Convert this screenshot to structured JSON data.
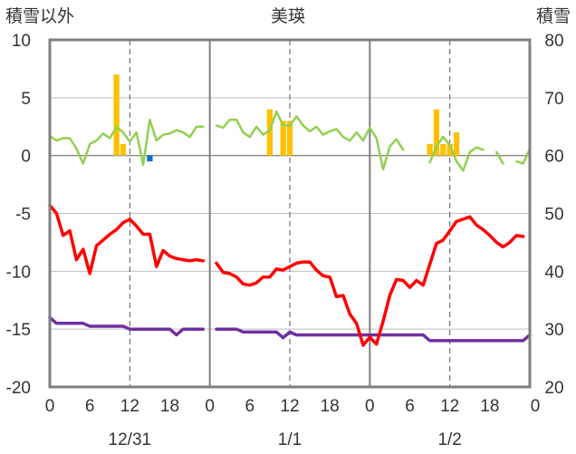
{
  "chart_data": {
    "type": "line",
    "title": "美瑛",
    "left_axis": {
      "label": "積雪以外",
      "ylim": [
        -20,
        10
      ],
      "ticks": [
        10,
        5,
        0,
        -5,
        -10,
        -15,
        -20
      ]
    },
    "right_axis": {
      "label": "積雪",
      "ylim": [
        20,
        80
      ],
      "ticks": [
        80,
        70,
        60,
        50,
        40,
        30,
        20
      ]
    },
    "x_axis": {
      "range_hours": [
        0,
        72
      ],
      "ticks": [
        {
          "h": 0,
          "label": "0"
        },
        {
          "h": 6,
          "label": "6"
        },
        {
          "h": 12,
          "label": "12"
        },
        {
          "h": 18,
          "label": "18"
        },
        {
          "h": 24,
          "label": "0"
        },
        {
          "h": 30,
          "label": "6"
        },
        {
          "h": 36,
          "label": "12"
        },
        {
          "h": 42,
          "label": "18"
        },
        {
          "h": 48,
          "label": "0"
        },
        {
          "h": 54,
          "label": "6"
        },
        {
          "h": 60,
          "label": "12"
        },
        {
          "h": 66,
          "label": "18"
        },
        {
          "h": 72,
          "label": "0"
        }
      ],
      "dates": [
        {
          "h": 12,
          "label": "12/31"
        },
        {
          "h": 36,
          "label": "1/1"
        },
        {
          "h": 60,
          "label": "1/2"
        }
      ],
      "day_separators": [
        24,
        48
      ],
      "noon_lines": [
        12,
        36,
        60
      ]
    },
    "colors": {
      "temperature": "#ff0000",
      "wind": "#92d050",
      "snow_depth": "#7030a0",
      "precipitation": "#ffc000",
      "snowfall_change": "#0070c0"
    },
    "precipitation_bars": [
      {
        "h": 10,
        "v": 7.0
      },
      {
        "h": 11,
        "v": 1.0
      },
      {
        "h": 33,
        "v": 4.0
      },
      {
        "h": 35,
        "v": 3.0
      },
      {
        "h": 36,
        "v": 3.0
      },
      {
        "h": 57,
        "v": 1.0
      },
      {
        "h": 58,
        "v": 4.0
      },
      {
        "h": 59,
        "v": 1.0
      },
      {
        "h": 60,
        "v": 1.0
      },
      {
        "h": 61,
        "v": 2.0
      }
    ],
    "snowfall_change_bars": [
      {
        "h": 15,
        "v": -0.5
      }
    ],
    "wind": [
      [
        {
          "h": 0,
          "v": 1.7
        },
        {
          "h": 1,
          "v": 1.3
        },
        {
          "h": 2,
          "v": 1.5
        },
        {
          "h": 3,
          "v": 1.5
        },
        {
          "h": 4,
          "v": 0.6
        },
        {
          "h": 5,
          "v": -0.7
        },
        {
          "h": 6,
          "v": 1.0
        },
        {
          "h": 7,
          "v": 1.3
        },
        {
          "h": 8,
          "v": 1.9
        },
        {
          "h": 9,
          "v": 1.5
        },
        {
          "h": 10,
          "v": 2.5
        },
        {
          "h": 11,
          "v": 2.0
        },
        {
          "h": 12,
          "v": 1.2
        },
        {
          "h": 13,
          "v": 2.0
        },
        {
          "h": 14,
          "v": -0.8
        },
        {
          "h": 15,
          "v": 3.1
        },
        {
          "h": 16,
          "v": 1.3
        },
        {
          "h": 17,
          "v": 1.8
        },
        {
          "h": 18,
          "v": 1.9
        },
        {
          "h": 19,
          "v": 2.2
        },
        {
          "h": 20,
          "v": 2.0
        },
        {
          "h": 21,
          "v": 1.6
        },
        {
          "h": 22,
          "v": 2.5
        },
        {
          "h": 23,
          "v": 2.5
        }
      ],
      [
        {
          "h": 25,
          "v": 2.6
        },
        {
          "h": 26,
          "v": 2.4
        },
        {
          "h": 27,
          "v": 3.1
        },
        {
          "h": 28,
          "v": 3.1
        },
        {
          "h": 29,
          "v": 2.0
        },
        {
          "h": 30,
          "v": 1.6
        },
        {
          "h": 31,
          "v": 2.5
        },
        {
          "h": 32,
          "v": 1.8
        },
        {
          "h": 33,
          "v": 2.2
        },
        {
          "h": 34,
          "v": 3.8
        },
        {
          "h": 35,
          "v": 2.6
        },
        {
          "h": 36,
          "v": 2.6
        },
        {
          "h": 37,
          "v": 3.4
        },
        {
          "h": 38,
          "v": 2.6
        },
        {
          "h": 39,
          "v": 2.1
        },
        {
          "h": 40,
          "v": 2.5
        },
        {
          "h": 41,
          "v": 1.8
        },
        {
          "h": 42,
          "v": 2.1
        },
        {
          "h": 43,
          "v": 2.3
        },
        {
          "h": 44,
          "v": 1.6
        },
        {
          "h": 45,
          "v": 1.3
        },
        {
          "h": 46,
          "v": 2.0
        },
        {
          "h": 47,
          "v": 1.3
        },
        {
          "h": 48,
          "v": 2.4
        },
        {
          "h": 49,
          "v": 1.5
        },
        {
          "h": 50,
          "v": -1.2
        },
        {
          "h": 51,
          "v": 0.8
        },
        {
          "h": 52,
          "v": 1.4
        },
        {
          "h": 53,
          "v": 0.5
        }
      ],
      [
        {
          "h": 57,
          "v": -0.6
        },
        {
          "h": 58,
          "v": 0.8
        },
        {
          "h": 59,
          "v": 1.6
        },
        {
          "h": 60,
          "v": 0.9
        },
        {
          "h": 61,
          "v": -0.5
        },
        {
          "h": 62,
          "v": -1.3
        },
        {
          "h": 63,
          "v": 0.3
        },
        {
          "h": 64,
          "v": 0.7
        },
        {
          "h": 65,
          "v": 0.5
        }
      ],
      [
        {
          "h": 67,
          "v": 0.3
        },
        {
          "h": 68,
          "v": -0.7
        }
      ],
      [
        {
          "h": 70,
          "v": -0.5
        },
        {
          "h": 71,
          "v": -0.7
        },
        {
          "h": 72,
          "v": 0.6
        }
      ]
    ],
    "temperature": [
      [
        {
          "h": 0,
          "v": -4.3
        },
        {
          "h": 1,
          "v": -5.0
        },
        {
          "h": 2,
          "v": -6.9
        },
        {
          "h": 3,
          "v": -6.5
        },
        {
          "h": 4,
          "v": -9.0
        },
        {
          "h": 5,
          "v": -8.1
        },
        {
          "h": 6,
          "v": -10.2
        },
        {
          "h": 7,
          "v": -7.8
        },
        {
          "h": 8,
          "v": -7.3
        },
        {
          "h": 9,
          "v": -6.8
        },
        {
          "h": 10,
          "v": -6.4
        },
        {
          "h": 11,
          "v": -5.8
        },
        {
          "h": 12,
          "v": -5.5
        },
        {
          "h": 13,
          "v": -6.1
        },
        {
          "h": 14,
          "v": -6.8
        },
        {
          "h": 15,
          "v": -6.8
        },
        {
          "h": 16,
          "v": -9.6
        },
        {
          "h": 17,
          "v": -8.2
        },
        {
          "h": 18,
          "v": -8.7
        },
        {
          "h": 19,
          "v": -8.9
        },
        {
          "h": 20,
          "v": -9.0
        },
        {
          "h": 21,
          "v": -9.1
        },
        {
          "h": 22,
          "v": -9.0
        },
        {
          "h": 23,
          "v": -9.1
        }
      ],
      [
        {
          "h": 25,
          "v": -9.3
        },
        {
          "h": 26,
          "v": -10.1
        },
        {
          "h": 27,
          "v": -10.2
        },
        {
          "h": 28,
          "v": -10.5
        },
        {
          "h": 29,
          "v": -11.1
        },
        {
          "h": 30,
          "v": -11.2
        },
        {
          "h": 31,
          "v": -11.0
        },
        {
          "h": 32,
          "v": -10.5
        },
        {
          "h": 33,
          "v": -10.5
        },
        {
          "h": 34,
          "v": -9.8
        },
        {
          "h": 35,
          "v": -9.9
        },
        {
          "h": 36,
          "v": -9.6
        },
        {
          "h": 37,
          "v": -9.3
        },
        {
          "h": 38,
          "v": -9.2
        },
        {
          "h": 39,
          "v": -9.2
        },
        {
          "h": 40,
          "v": -9.9
        },
        {
          "h": 41,
          "v": -10.4
        },
        {
          "h": 42,
          "v": -10.5
        },
        {
          "h": 43,
          "v": -12.2
        },
        {
          "h": 44,
          "v": -12.1
        },
        {
          "h": 45,
          "v": -13.7
        },
        {
          "h": 46,
          "v": -14.5
        },
        {
          "h": 47,
          "v": -16.4
        },
        {
          "h": 48,
          "v": -15.7
        },
        {
          "h": 49,
          "v": -16.3
        },
        {
          "h": 50,
          "v": -14.3
        },
        {
          "h": 51,
          "v": -12.1
        },
        {
          "h": 52,
          "v": -10.7
        },
        {
          "h": 53,
          "v": -10.8
        },
        {
          "h": 54,
          "v": -11.4
        },
        {
          "h": 55,
          "v": -10.8
        },
        {
          "h": 56,
          "v": -11.2
        },
        {
          "h": 57,
          "v": -9.4
        },
        {
          "h": 58,
          "v": -7.6
        },
        {
          "h": 59,
          "v": -7.3
        },
        {
          "h": 60,
          "v": -6.5
        },
        {
          "h": 61,
          "v": -5.7
        },
        {
          "h": 62,
          "v": -5.5
        },
        {
          "h": 63,
          "v": -5.3
        },
        {
          "h": 64,
          "v": -6.0
        },
        {
          "h": 65,
          "v": -6.4
        },
        {
          "h": 66,
          "v": -6.9
        },
        {
          "h": 67,
          "v": -7.5
        },
        {
          "h": 68,
          "v": -7.9
        },
        {
          "h": 69,
          "v": -7.5
        },
        {
          "h": 70,
          "v": -6.9
        },
        {
          "h": 71,
          "v": -7.0
        }
      ]
    ],
    "snow_depth": [
      [
        {
          "h": 0,
          "v": 32
        },
        {
          "h": 1,
          "v": 31
        },
        {
          "h": 2,
          "v": 31
        },
        {
          "h": 3,
          "v": 31
        },
        {
          "h": 4,
          "v": 31
        },
        {
          "h": 5,
          "v": 31
        },
        {
          "h": 6,
          "v": 30.5
        },
        {
          "h": 7,
          "v": 30.5
        },
        {
          "h": 8,
          "v": 30.5
        },
        {
          "h": 9,
          "v": 30.5
        },
        {
          "h": 10,
          "v": 30.5
        },
        {
          "h": 11,
          "v": 30.5
        },
        {
          "h": 12,
          "v": 30
        },
        {
          "h": 13,
          "v": 30
        },
        {
          "h": 14,
          "v": 30
        },
        {
          "h": 15,
          "v": 30
        },
        {
          "h": 16,
          "v": 30
        },
        {
          "h": 17,
          "v": 30
        },
        {
          "h": 18,
          "v": 30
        },
        {
          "h": 19,
          "v": 29
        },
        {
          "h": 20,
          "v": 30
        },
        {
          "h": 21,
          "v": 30
        },
        {
          "h": 22,
          "v": 30
        },
        {
          "h": 23,
          "v": 30
        }
      ],
      [
        {
          "h": 25,
          "v": 30
        },
        {
          "h": 26,
          "v": 30
        },
        {
          "h": 27,
          "v": 30
        },
        {
          "h": 28,
          "v": 30
        },
        {
          "h": 29,
          "v": 29.5
        },
        {
          "h": 30,
          "v": 29.5
        },
        {
          "h": 31,
          "v": 29.5
        },
        {
          "h": 32,
          "v": 29.5
        },
        {
          "h": 33,
          "v": 29.5
        },
        {
          "h": 34,
          "v": 29.5
        },
        {
          "h": 35,
          "v": 28.5
        },
        {
          "h": 36,
          "v": 29.5
        },
        {
          "h": 37,
          "v": 29
        },
        {
          "h": 38,
          "v": 29
        },
        {
          "h": 39,
          "v": 29
        },
        {
          "h": 40,
          "v": 29
        },
        {
          "h": 41,
          "v": 29
        },
        {
          "h": 42,
          "v": 29
        },
        {
          "h": 43,
          "v": 29
        },
        {
          "h": 44,
          "v": 29
        },
        {
          "h": 45,
          "v": 29
        },
        {
          "h": 46,
          "v": 29
        },
        {
          "h": 47,
          "v": 29
        },
        {
          "h": 48,
          "v": 29
        },
        {
          "h": 49,
          "v": 29
        },
        {
          "h": 50,
          "v": 29
        },
        {
          "h": 51,
          "v": 29
        },
        {
          "h": 52,
          "v": 29
        },
        {
          "h": 53,
          "v": 29
        },
        {
          "h": 54,
          "v": 29
        },
        {
          "h": 55,
          "v": 29
        },
        {
          "h": 56,
          "v": 29
        },
        {
          "h": 57,
          "v": 28
        },
        {
          "h": 58,
          "v": 28
        },
        {
          "h": 59,
          "v": 28
        },
        {
          "h": 60,
          "v": 28
        },
        {
          "h": 61,
          "v": 28
        },
        {
          "h": 62,
          "v": 28
        },
        {
          "h": 63,
          "v": 28
        },
        {
          "h": 64,
          "v": 28
        },
        {
          "h": 65,
          "v": 28
        },
        {
          "h": 66,
          "v": 28
        },
        {
          "h": 67,
          "v": 28
        },
        {
          "h": 68,
          "v": 28
        },
        {
          "h": 69,
          "v": 28
        },
        {
          "h": 70,
          "v": 28
        },
        {
          "h": 71,
          "v": 28
        },
        {
          "h": 72,
          "v": 29
        }
      ]
    ]
  }
}
